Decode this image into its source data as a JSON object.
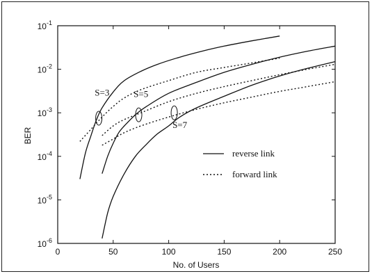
{
  "chart_data": {
    "type": "line",
    "title": "",
    "xlabel": "No. of Users",
    "ylabel": "BER",
    "xlim": [
      0,
      250
    ],
    "ylim": [
      1e-06,
      0.1
    ],
    "yscale": "log",
    "grid": false,
    "legend_position": "right-middle",
    "x_ticks": [
      0,
      50,
      100,
      150,
      200,
      250
    ],
    "x_tick_labels": [
      "0",
      "50",
      "100",
      "150",
      "200",
      "250"
    ],
    "y_ticks": [
      1e-06,
      1e-05,
      0.0001,
      0.001,
      0.01,
      0.1
    ],
    "y_tick_labels": [
      {
        "base": "10",
        "exp": "-6"
      },
      {
        "base": "10",
        "exp": "-5"
      },
      {
        "base": "10",
        "exp": "-4"
      },
      {
        "base": "10",
        "exp": "-3"
      },
      {
        "base": "10",
        "exp": "-2"
      },
      {
        "base": "10",
        "exp": "-1"
      }
    ],
    "legend": [
      {
        "label": "reverse link",
        "style": "solid"
      },
      {
        "label": "forward link",
        "style": "dotted"
      }
    ],
    "series": [
      {
        "group": "S=3",
        "style": "solid",
        "x": [
          20,
          25,
          30,
          35,
          40,
          50,
          60,
          75,
          90,
          110,
          130,
          150,
          175,
          200
        ],
        "y": [
          3e-05,
          0.00012,
          0.0003,
          0.0007,
          0.0013,
          0.003,
          0.0055,
          0.009,
          0.013,
          0.019,
          0.026,
          0.034,
          0.045,
          0.058
        ]
      },
      {
        "group": "S=3",
        "style": "dotted",
        "x": [
          20,
          30,
          40,
          50,
          60,
          75,
          100,
          125,
          150,
          175,
          200
        ],
        "y": [
          0.00022,
          0.00042,
          0.0008,
          0.0014,
          0.0022,
          0.0034,
          0.0055,
          0.0085,
          0.011,
          0.014,
          0.018
        ]
      },
      {
        "group": "S=5",
        "style": "solid",
        "x": [
          40,
          45,
          50,
          55,
          60,
          70,
          80,
          100,
          125,
          150,
          175,
          200,
          225,
          250
        ],
        "y": [
          4e-05,
          0.0001,
          0.0002,
          0.00035,
          0.0005,
          0.0009,
          0.0014,
          0.0028,
          0.005,
          0.0085,
          0.013,
          0.019,
          0.026,
          0.034
        ]
      },
      {
        "group": "S=5",
        "style": "dotted",
        "x": [
          40,
          50,
          60,
          75,
          100,
          125,
          150,
          175,
          200,
          225,
          250
        ],
        "y": [
          0.0003,
          0.0005,
          0.0007,
          0.001,
          0.0018,
          0.0028,
          0.004,
          0.0055,
          0.0075,
          0.01,
          0.013
        ]
      },
      {
        "group": "S=7",
        "style": "solid",
        "x": [
          40,
          45,
          50,
          60,
          70,
          80,
          90,
          100,
          110,
          125,
          150,
          175,
          200,
          225,
          250
        ],
        "y": [
          1.3e-06,
          5e-06,
          1.2e-05,
          4e-05,
          0.0001,
          0.00019,
          0.00033,
          0.0005,
          0.0008,
          0.0013,
          0.0024,
          0.0043,
          0.007,
          0.0105,
          0.015
        ]
      },
      {
        "group": "S=7",
        "style": "dotted",
        "x": [
          40,
          50,
          60,
          75,
          100,
          125,
          150,
          175,
          200,
          225,
          250
        ],
        "y": [
          0.00018,
          0.00025,
          0.00035,
          0.0005,
          0.0008,
          0.0012,
          0.0017,
          0.0023,
          0.0031,
          0.004,
          0.0052
        ]
      }
    ],
    "annotations": [
      {
        "text": "S=3",
        "x": 40,
        "y": 0.0025
      },
      {
        "text": "S=5",
        "x": 75,
        "y": 0.0023
      },
      {
        "text": "S=7",
        "x": 110,
        "y": 0.00045
      }
    ],
    "markers": [
      {
        "shape": "ellipse",
        "x": 37,
        "y": 0.00075
      },
      {
        "shape": "ellipse",
        "x": 73,
        "y": 0.0009
      },
      {
        "shape": "ellipse",
        "x": 105,
        "y": 0.001
      }
    ]
  }
}
